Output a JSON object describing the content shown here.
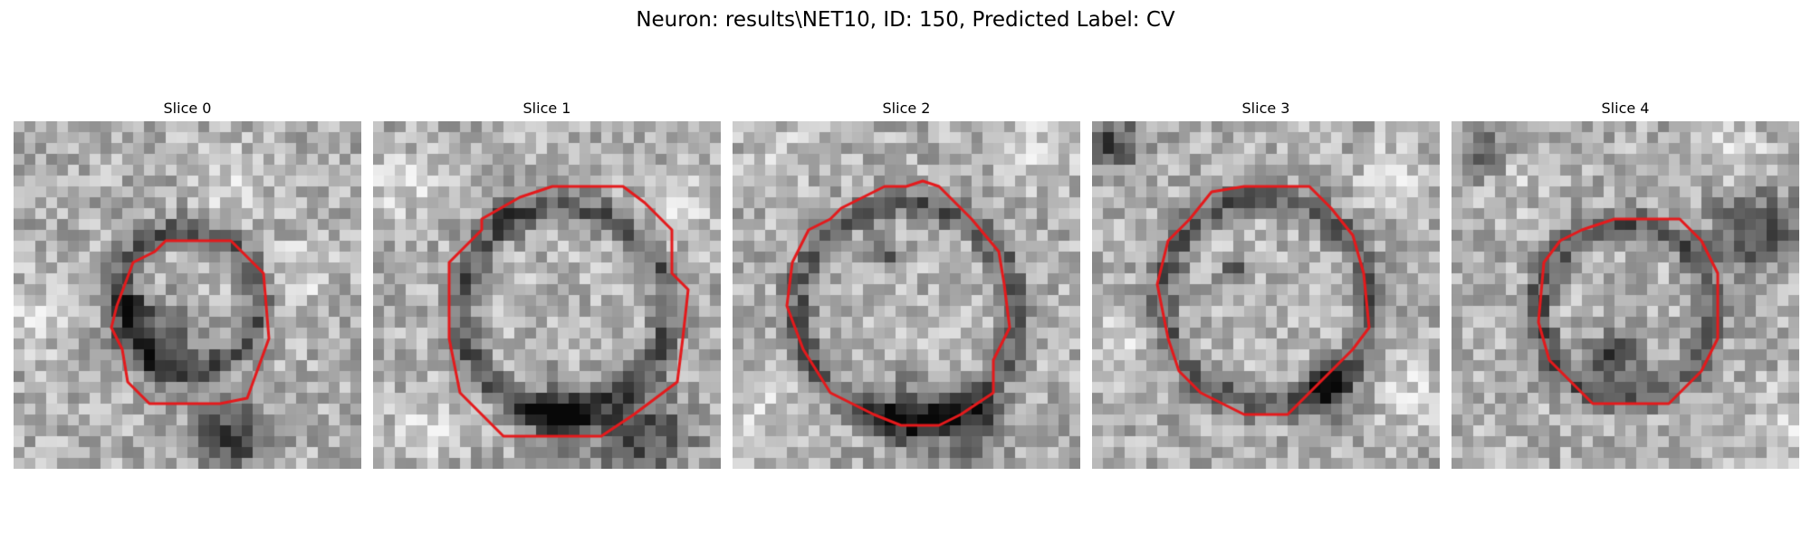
{
  "figure": {
    "title": "Neuron: results\\NET10, ID: 150, Predicted Label: CV",
    "overlay_color": "#e41a1c"
  },
  "slices": [
    {
      "title": "Slice 0",
      "image": "grayscale microscopy patch with red outline"
    },
    {
      "title": "Slice 1",
      "image": "grayscale microscopy patch with red outline"
    },
    {
      "title": "Slice 2",
      "image": "grayscale microscopy patch with red outline"
    },
    {
      "title": "Slice 3",
      "image": "grayscale microscopy patch with red outline"
    },
    {
      "title": "Slice 4",
      "image": "grayscale microscopy patch with red outline"
    }
  ]
}
